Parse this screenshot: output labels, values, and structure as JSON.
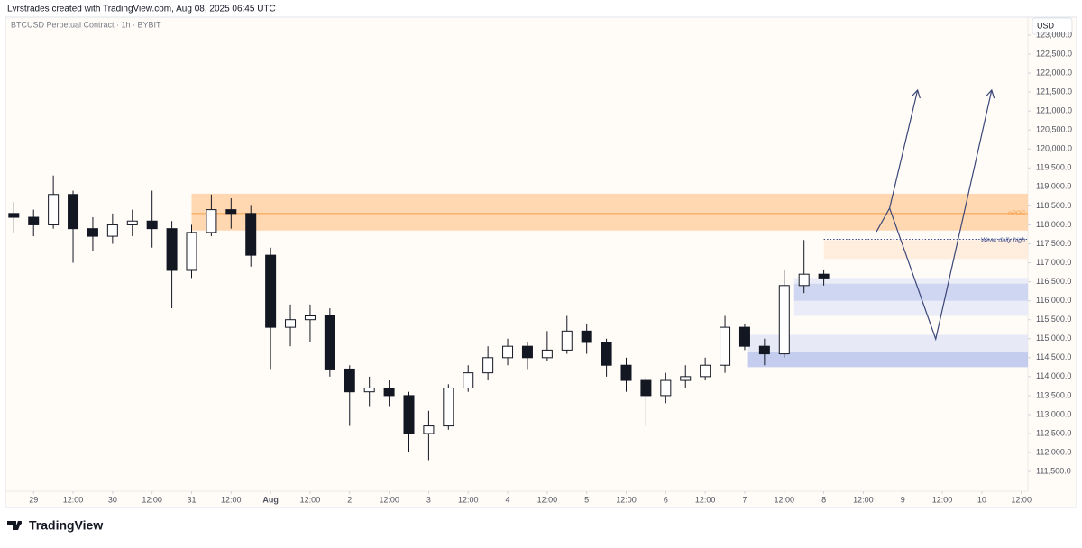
{
  "header": {
    "credit": "Lvrstrades created with TradingView.com, Aug 08, 2025 06:45 UTC"
  },
  "footer": {
    "brand": "TradingView"
  },
  "chart_data": {
    "type": "candlestick",
    "title": "BTCUSD Perpetual Contract · 1h · BYBIT",
    "currency": "USD",
    "up_color": "#ffffff",
    "down_color": "#131722",
    "wick_color": "#131722",
    "x": [
      -6,
      0,
      6,
      12,
      18,
      24,
      30,
      36,
      42,
      48,
      54,
      60,
      66,
      72,
      78,
      84,
      90,
      96,
      102,
      108,
      114,
      120,
      126,
      132,
      138,
      144,
      150,
      156,
      162,
      168,
      174,
      180,
      186,
      192,
      198,
      204,
      210,
      216,
      222,
      228,
      234,
      240
    ],
    "open": [
      118300,
      118200,
      118000,
      118800,
      117900,
      117700,
      118000,
      118100,
      117900,
      116800,
      117800,
      118400,
      118300,
      117200,
      115300,
      115500,
      115600,
      114200,
      113600,
      113700,
      113500,
      112500,
      112700,
      113700,
      114100,
      114500,
      114800,
      114500,
      114700,
      115200,
      114900,
      114300,
      113900,
      113500,
      113900,
      114000,
      114300,
      115300,
      114800,
      114600,
      116400,
      116700
    ],
    "high": [
      118600,
      118400,
      119300,
      118900,
      118200,
      118300,
      118400,
      118900,
      118100,
      118000,
      118800,
      118700,
      118500,
      117400,
      115900,
      115900,
      115800,
      114300,
      114000,
      113900,
      113600,
      113100,
      113800,
      114300,
      114800,
      115000,
      114900,
      115200,
      115600,
      115400,
      115000,
      114500,
      114000,
      114100,
      114300,
      114500,
      115600,
      115400,
      115000,
      116800,
      117600,
      116800
    ],
    "low": [
      117800,
      117700,
      117900,
      117000,
      117300,
      117500,
      117700,
      117400,
      115800,
      116600,
      117700,
      117900,
      116900,
      114200,
      114800,
      114900,
      114000,
      112700,
      113200,
      113200,
      112000,
      111800,
      112600,
      113600,
      113900,
      114300,
      114200,
      114400,
      114600,
      114600,
      114000,
      113600,
      112700,
      113300,
      113700,
      113900,
      114100,
      114700,
      114300,
      114500,
      116200,
      116400
    ],
    "close": [
      118200,
      118000,
      118800,
      117900,
      117700,
      118000,
      118100,
      117900,
      116800,
      117800,
      118400,
      118300,
      117200,
      115300,
      115500,
      115600,
      114200,
      113600,
      113700,
      113500,
      112500,
      112700,
      113700,
      114100,
      114500,
      114800,
      114500,
      114700,
      115200,
      114900,
      114300,
      113900,
      113500,
      113900,
      114000,
      114300,
      115300,
      114800,
      114600,
      116400,
      116700,
      116600
    ],
    "xlim": [
      -8,
      302
    ],
    "xticks": [
      {
        "value": 0,
        "label": "29"
      },
      {
        "value": 12,
        "label": "12:00"
      },
      {
        "value": 24,
        "label": "30"
      },
      {
        "value": 36,
        "label": "12:00"
      },
      {
        "value": 48,
        "label": "31"
      },
      {
        "value": 60,
        "label": "12:00"
      },
      {
        "value": 72,
        "label": "Aug"
      },
      {
        "value": 84,
        "label": "12:00"
      },
      {
        "value": 96,
        "label": "2"
      },
      {
        "value": 108,
        "label": "12:00"
      },
      {
        "value": 120,
        "label": "3"
      },
      {
        "value": 132,
        "label": "12:00"
      },
      {
        "value": 144,
        "label": "4"
      },
      {
        "value": 156,
        "label": "12:00"
      },
      {
        "value": 168,
        "label": "5"
      },
      {
        "value": 180,
        "label": "12:00"
      },
      {
        "value": 192,
        "label": "6"
      },
      {
        "value": 204,
        "label": "12:00"
      },
      {
        "value": 216,
        "label": "7"
      },
      {
        "value": 228,
        "label": "12:00"
      },
      {
        "value": 240,
        "label": "8"
      },
      {
        "value": 252,
        "label": "12:00"
      },
      {
        "value": 264,
        "label": "9"
      },
      {
        "value": 276,
        "label": "12:00"
      },
      {
        "value": 288,
        "label": "10"
      },
      {
        "value": 300,
        "label": "12:00"
      }
    ],
    "ylim": [
      110980,
      123450
    ],
    "yticks": [
      {
        "value": 111500,
        "label": "111,500.0"
      },
      {
        "value": 112000,
        "label": "112,000.0"
      },
      {
        "value": 112500,
        "label": "112,500.0"
      },
      {
        "value": 113000,
        "label": "113,000.0"
      },
      {
        "value": 113500,
        "label": "113,500.0"
      },
      {
        "value": 114000,
        "label": "114,000.0"
      },
      {
        "value": 114500,
        "label": "114,500.0"
      },
      {
        "value": 115000,
        "label": "115,000.0"
      },
      {
        "value": 115500,
        "label": "115,500.0"
      },
      {
        "value": 116000,
        "label": "116,000.0"
      },
      {
        "value": 116500,
        "label": "116,500.0"
      },
      {
        "value": 117000,
        "label": "117,000.0"
      },
      {
        "value": 117500,
        "label": "117,500.0"
      },
      {
        "value": 118000,
        "label": "118,000.0"
      },
      {
        "value": 118500,
        "label": "118,500.0"
      },
      {
        "value": 119000,
        "label": "119,000.0"
      },
      {
        "value": 119500,
        "label": "119,500.0"
      },
      {
        "value": 120000,
        "label": "120,000.0"
      },
      {
        "value": 120500,
        "label": "120,500.0"
      },
      {
        "value": 121000,
        "label": "121,000.0"
      },
      {
        "value": 121500,
        "label": "121,500.0"
      },
      {
        "value": 122000,
        "label": "122,000.0"
      },
      {
        "value": 122500,
        "label": "122,500.0"
      },
      {
        "value": 123000,
        "label": "123,000.0"
      }
    ],
    "zones": [
      {
        "x": [
          48,
          302
        ],
        "y": [
          117850,
          118820
        ],
        "color": "#ffcc99"
      },
      {
        "x": [
          240,
          302
        ],
        "y": [
          117100,
          117600
        ],
        "color": "#ffe9d6"
      },
      {
        "x": [
          231,
          302
        ],
        "y": [
          115600,
          116600
        ],
        "color": "#e3e8f7"
      },
      {
        "x": [
          231,
          302
        ],
        "y": [
          116000,
          116450
        ],
        "color": "#c5cdef"
      },
      {
        "x": [
          217,
          302
        ],
        "y": [
          114250,
          115100
        ],
        "color": "#dfe4f6"
      },
      {
        "x": [
          217,
          302
        ],
        "y": [
          114250,
          114650
        ],
        "color": "#b9c3ec"
      }
    ],
    "levels": [
      {
        "label": "nPOC",
        "value": 118300,
        "x": [
          48,
          302
        ],
        "color": "#f5a04a"
      },
      {
        "label": "Weak daily high",
        "value": 117620,
        "x": [
          240,
          302
        ],
        "color": "#3d4a8a"
      }
    ],
    "arrows": [
      {
        "x": [
          256,
          260,
          268.5
        ],
        "y": [
          117820,
          118440,
          121550
        ]
      },
      {
        "x": [
          260,
          274,
          291
        ],
        "y": [
          118440,
          114990,
          121550
        ]
      }
    ],
    "arrow_color": "#3b4677"
  }
}
